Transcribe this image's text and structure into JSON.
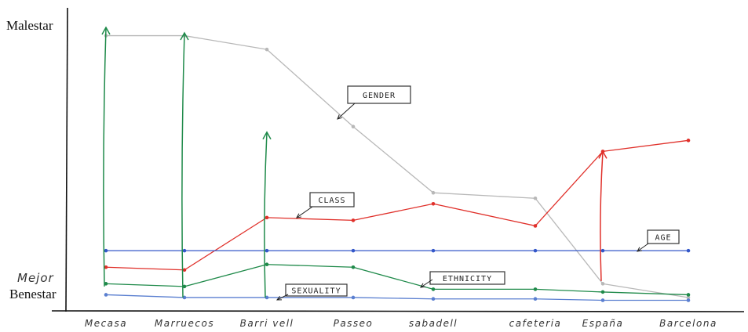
{
  "chart_data": {
    "type": "line",
    "y_top_label": "Malestar",
    "y_bottom_label_hand": "Mejor",
    "y_bottom_label": "Benestar",
    "categories": [
      "Mecasa",
      "Marruecos",
      "Barri vell",
      "Passeo",
      "sabadell",
      "cafeteria",
      "España",
      "Barcelona"
    ],
    "ylim": [
      0,
      100
    ],
    "series": [
      {
        "name": "GENDER",
        "color": "#b8b8b8",
        "values": [
          97,
          97,
          92,
          64,
          40,
          38,
          7,
          2
        ]
      },
      {
        "name": "CLASS",
        "color": "#e0302a",
        "values": [
          13,
          12,
          31,
          30,
          36,
          28,
          55,
          59
        ]
      },
      {
        "name": "AGE",
        "color": "#3357c9",
        "values": [
          19,
          19,
          19,
          19,
          19,
          19,
          19,
          19
        ]
      },
      {
        "name": "ETHNICITY",
        "color": "#1f8a4a",
        "values": [
          7,
          6,
          14,
          13,
          5,
          5,
          4,
          3
        ]
      },
      {
        "name": "SEXUALITY",
        "color": "#5a7fd0",
        "values": [
          3,
          2,
          2,
          2,
          1.5,
          1.5,
          1,
          1
        ]
      }
    ],
    "arrows": [
      {
        "color": "#1f8a4a",
        "category_index": 0,
        "from": 6,
        "to": 100
      },
      {
        "color": "#1f8a4a",
        "category_index": 1,
        "from": 2,
        "to": 98
      },
      {
        "color": "#1f8a4a",
        "category_index": 2,
        "from": 2,
        "to": 62
      },
      {
        "color": "#e0302a",
        "category_index": 6,
        "from": 8,
        "to": 55
      }
    ]
  }
}
